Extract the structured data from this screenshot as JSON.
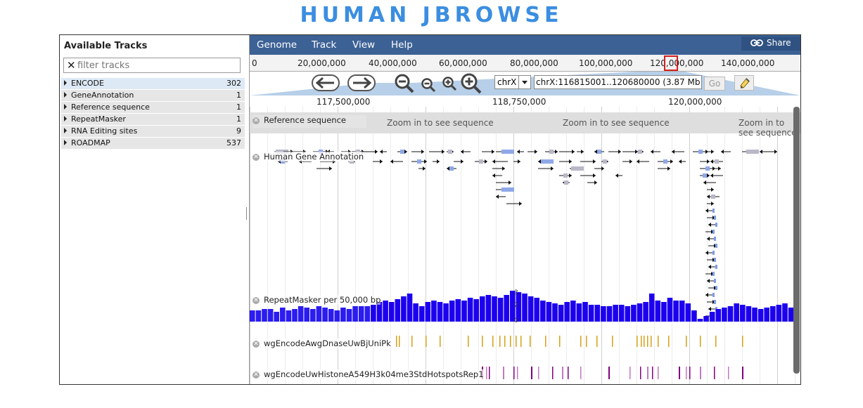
{
  "page_title": "HUMAN JBROWSE",
  "sidebar": {
    "header": "Available Tracks",
    "filter_placeholder": "filter tracks",
    "categories": [
      {
        "name": "ENCODE",
        "count": "302"
      },
      {
        "name": "GeneAnnotation",
        "count": "1"
      },
      {
        "name": "Reference sequence",
        "count": "1"
      },
      {
        "name": "RepeatMasker",
        "count": "1"
      },
      {
        "name": "RNA Editing sites",
        "count": "9"
      },
      {
        "name": "ROADMAP",
        "count": "537"
      }
    ]
  },
  "menubar": {
    "items": [
      "Genome",
      "Track",
      "View",
      "Help"
    ],
    "share_label": "Share"
  },
  "overview_ruler": {
    "ticks": [
      "0",
      "20,000,000",
      "40,000,000",
      "60,000,000",
      "80,000,000",
      "100,000,000",
      "120,000,000",
      "140,000,000"
    ],
    "highlight_color": "#d41f1f"
  },
  "nav": {
    "ref_seq": "chrX",
    "location": "chrX:116815001..120680000 (3.87 Mb)",
    "go_label": "Go",
    "icons": [
      "arrow-left-icon",
      "arrow-right-icon",
      "zoom-out-large-icon",
      "zoom-out-small-icon",
      "zoom-in-small-icon",
      "zoom-in-large-icon",
      "highlighter-icon"
    ]
  },
  "detail_ruler": {
    "ticks": [
      "117,500,000",
      "118,750,000",
      "120,000,000"
    ]
  },
  "tracks": {
    "reference": {
      "label": "Reference sequence",
      "message": "Zoom in to see sequence"
    },
    "gene": {
      "label": "Human Gene Annotation"
    },
    "repeat": {
      "label": "RepeatMasker per 50,000 bp",
      "axis_top": "3",
      "axis_mid": "2",
      "axis_bottom": "0"
    },
    "dnase": {
      "label": "wgEncodeAwgDnaseUwBjUniPk"
    },
    "histone": {
      "label": "wgEncodeUwHistoneA549H3k04me3StdHotspotsRep1"
    }
  },
  "colors": {
    "title": "#3b8ee0",
    "menubar": "#3c6195",
    "repeat_bars": "#1c00ee",
    "dnase_marks": "#d4a017",
    "histone_marks": "#800080"
  }
}
